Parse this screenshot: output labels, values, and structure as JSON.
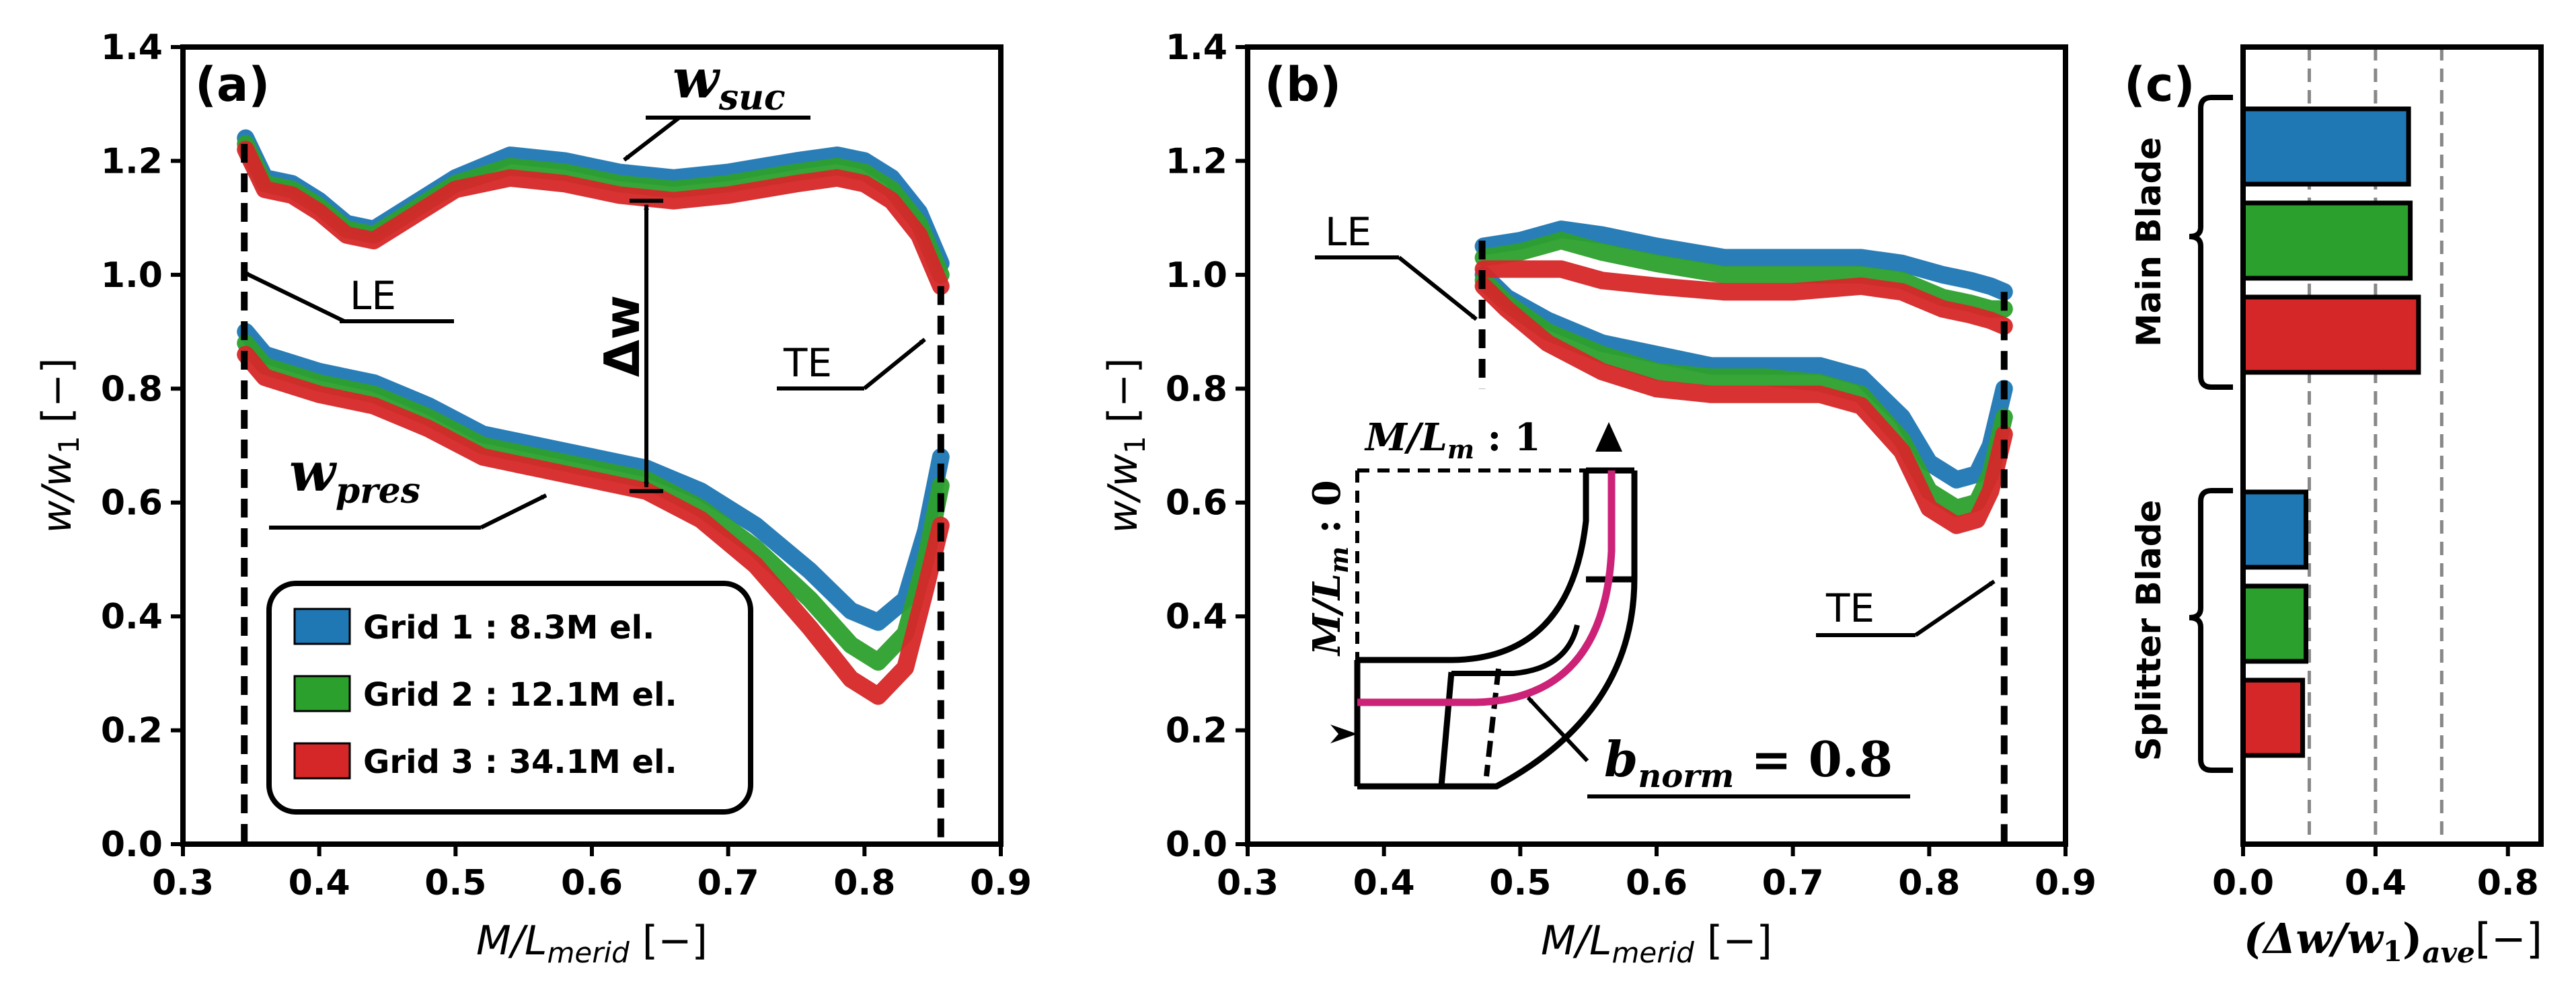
{
  "colors": {
    "grid1": "#1f77b4",
    "grid2": "#2ca02c",
    "grid3": "#d62728",
    "mid_curve": "#cc2277"
  },
  "chart_data": [
    {
      "panel": "(a)",
      "type": "line",
      "xlabel_main": "M/L",
      "xlabel_sub": "merid",
      "xlabel_unit": " [−]",
      "ylabel_main": "w/w",
      "ylabel_sub": "1",
      "ylabel_unit": " [−]",
      "xlim": [
        0.3,
        0.9
      ],
      "ylim": [
        0.0,
        1.4
      ],
      "xticks": [
        "0.3",
        "0.4",
        "0.5",
        "0.6",
        "0.7",
        "0.8",
        "0.9"
      ],
      "yticks": [
        "0.0",
        "0.2",
        "0.4",
        "0.6",
        "0.8",
        "1.0",
        "1.2",
        "1.4"
      ],
      "le_x": 0.345,
      "te_x": 0.856,
      "series": [
        {
          "name": "Grid 1 : 8.3M el.",
          "color": "#1f77b4",
          "suction": [
            [
              0.346,
              1.24
            ],
            [
              0.36,
              1.17
            ],
            [
              0.38,
              1.16
            ],
            [
              0.4,
              1.13
            ],
            [
              0.42,
              1.09
            ],
            [
              0.44,
              1.08
            ],
            [
              0.46,
              1.11
            ],
            [
              0.5,
              1.17
            ],
            [
              0.54,
              1.21
            ],
            [
              0.58,
              1.2
            ],
            [
              0.62,
              1.18
            ],
            [
              0.66,
              1.17
            ],
            [
              0.7,
              1.18
            ],
            [
              0.75,
              1.2
            ],
            [
              0.78,
              1.21
            ],
            [
              0.8,
              1.2
            ],
            [
              0.82,
              1.17
            ],
            [
              0.84,
              1.11
            ],
            [
              0.856,
              1.02
            ]
          ],
          "pressure": [
            [
              0.346,
              0.9
            ],
            [
              0.36,
              0.86
            ],
            [
              0.4,
              0.83
            ],
            [
              0.44,
              0.81
            ],
            [
              0.48,
              0.77
            ],
            [
              0.52,
              0.72
            ],
            [
              0.56,
              0.7
            ],
            [
              0.6,
              0.68
            ],
            [
              0.64,
              0.66
            ],
            [
              0.68,
              0.62
            ],
            [
              0.72,
              0.56
            ],
            [
              0.76,
              0.48
            ],
            [
              0.79,
              0.41
            ],
            [
              0.81,
              0.39
            ],
            [
              0.83,
              0.43
            ],
            [
              0.845,
              0.55
            ],
            [
              0.856,
              0.68
            ]
          ]
        },
        {
          "name": "Grid 2 : 12.1M el.",
          "color": "#2ca02c",
          "suction": [
            [
              0.346,
              1.23
            ],
            [
              0.36,
              1.16
            ],
            [
              0.38,
              1.15
            ],
            [
              0.4,
              1.12
            ],
            [
              0.42,
              1.08
            ],
            [
              0.44,
              1.07
            ],
            [
              0.46,
              1.1
            ],
            [
              0.5,
              1.16
            ],
            [
              0.54,
              1.19
            ],
            [
              0.58,
              1.18
            ],
            [
              0.62,
              1.16
            ],
            [
              0.66,
              1.15
            ],
            [
              0.7,
              1.16
            ],
            [
              0.75,
              1.18
            ],
            [
              0.78,
              1.19
            ],
            [
              0.8,
              1.18
            ],
            [
              0.82,
              1.15
            ],
            [
              0.84,
              1.09
            ],
            [
              0.856,
              1.0
            ]
          ],
          "pressure": [
            [
              0.346,
              0.88
            ],
            [
              0.36,
              0.84
            ],
            [
              0.4,
              0.81
            ],
            [
              0.44,
              0.79
            ],
            [
              0.48,
              0.75
            ],
            [
              0.52,
              0.7
            ],
            [
              0.56,
              0.68
            ],
            [
              0.6,
              0.66
            ],
            [
              0.64,
              0.64
            ],
            [
              0.68,
              0.59
            ],
            [
              0.72,
              0.52
            ],
            [
              0.76,
              0.43
            ],
            [
              0.79,
              0.35
            ],
            [
              0.81,
              0.32
            ],
            [
              0.83,
              0.37
            ],
            [
              0.845,
              0.5
            ],
            [
              0.856,
              0.63
            ]
          ]
        },
        {
          "name": "Grid 3 : 34.1M el.",
          "color": "#d62728",
          "suction": [
            [
              0.346,
              1.22
            ],
            [
              0.36,
              1.15
            ],
            [
              0.38,
              1.14
            ],
            [
              0.4,
              1.11
            ],
            [
              0.42,
              1.07
            ],
            [
              0.44,
              1.06
            ],
            [
              0.46,
              1.09
            ],
            [
              0.5,
              1.15
            ],
            [
              0.54,
              1.17
            ],
            [
              0.58,
              1.16
            ],
            [
              0.62,
              1.14
            ],
            [
              0.66,
              1.13
            ],
            [
              0.7,
              1.14
            ],
            [
              0.75,
              1.16
            ],
            [
              0.78,
              1.17
            ],
            [
              0.8,
              1.16
            ],
            [
              0.82,
              1.13
            ],
            [
              0.84,
              1.07
            ],
            [
              0.856,
              0.98
            ]
          ],
          "pressure": [
            [
              0.346,
              0.86
            ],
            [
              0.36,
              0.82
            ],
            [
              0.4,
              0.79
            ],
            [
              0.44,
              0.77
            ],
            [
              0.48,
              0.73
            ],
            [
              0.52,
              0.68
            ],
            [
              0.56,
              0.66
            ],
            [
              0.6,
              0.64
            ],
            [
              0.64,
              0.62
            ],
            [
              0.68,
              0.57
            ],
            [
              0.72,
              0.49
            ],
            [
              0.76,
              0.38
            ],
            [
              0.79,
              0.29
            ],
            [
              0.81,
              0.26
            ],
            [
              0.83,
              0.31
            ],
            [
              0.845,
              0.45
            ],
            [
              0.856,
              0.56
            ]
          ]
        }
      ],
      "annotations": {
        "w_suc_main": "w",
        "w_suc_sub": "suc",
        "w_pres_main": "w",
        "w_pres_sub": "pres",
        "dw_label": "Δw",
        "dw_x": 0.64,
        "dw_top": 1.13,
        "dw_bottom": 0.62,
        "le_label": "LE",
        "te_label": "TE"
      },
      "legend": {
        "position": "lower-left",
        "entries": [
          "Grid 1 : 8.3M el.",
          "Grid 2 : 12.1M el.",
          "Grid 3 : 34.1M el."
        ]
      }
    },
    {
      "panel": "(b)",
      "type": "line",
      "xlabel_main": "M/L",
      "xlabel_sub": "merid",
      "xlabel_unit": " [−]",
      "ylabel_main": "w/w",
      "ylabel_sub": "1",
      "ylabel_unit": " [−]",
      "xlim": [
        0.3,
        0.9
      ],
      "ylim": [
        0.0,
        1.4
      ],
      "xticks": [
        "0.3",
        "0.4",
        "0.5",
        "0.6",
        "0.7",
        "0.8",
        "0.9"
      ],
      "yticks": [
        "0.0",
        "0.2",
        "0.4",
        "0.6",
        "0.8",
        "1.0",
        "1.2",
        "1.4"
      ],
      "le_x": 0.472,
      "te_x": 0.855,
      "series": [
        {
          "name": "Grid 1",
          "color": "#1f77b4",
          "suction": [
            [
              0.473,
              1.05
            ],
            [
              0.5,
              1.06
            ],
            [
              0.53,
              1.08
            ],
            [
              0.56,
              1.07
            ],
            [
              0.6,
              1.05
            ],
            [
              0.65,
              1.03
            ],
            [
              0.7,
              1.03
            ],
            [
              0.75,
              1.03
            ],
            [
              0.78,
              1.02
            ],
            [
              0.81,
              1.0
            ],
            [
              0.83,
              0.99
            ],
            [
              0.845,
              0.98
            ],
            [
              0.855,
              0.97
            ]
          ],
          "pressure": [
            [
              0.473,
              1.0
            ],
            [
              0.49,
              0.96
            ],
            [
              0.52,
              0.92
            ],
            [
              0.56,
              0.88
            ],
            [
              0.6,
              0.86
            ],
            [
              0.64,
              0.84
            ],
            [
              0.68,
              0.84
            ],
            [
              0.72,
              0.84
            ],
            [
              0.75,
              0.82
            ],
            [
              0.78,
              0.75
            ],
            [
              0.8,
              0.67
            ],
            [
              0.82,
              0.64
            ],
            [
              0.835,
              0.65
            ],
            [
              0.845,
              0.7
            ],
            [
              0.855,
              0.8
            ]
          ]
        },
        {
          "name": "Grid 2",
          "color": "#2ca02c",
          "suction": [
            [
              0.473,
              1.03
            ],
            [
              0.5,
              1.04
            ],
            [
              0.53,
              1.06
            ],
            [
              0.56,
              1.04
            ],
            [
              0.6,
              1.02
            ],
            [
              0.65,
              1.0
            ],
            [
              0.7,
              1.0
            ],
            [
              0.75,
              1.0
            ],
            [
              0.78,
              0.99
            ],
            [
              0.81,
              0.96
            ],
            [
              0.83,
              0.95
            ],
            [
              0.845,
              0.94
            ],
            [
              0.855,
              0.94
            ]
          ],
          "pressure": [
            [
              0.473,
              0.99
            ],
            [
              0.49,
              0.95
            ],
            [
              0.52,
              0.9
            ],
            [
              0.56,
              0.86
            ],
            [
              0.6,
              0.83
            ],
            [
              0.64,
              0.82
            ],
            [
              0.68,
              0.82
            ],
            [
              0.72,
              0.81
            ],
            [
              0.75,
              0.79
            ],
            [
              0.78,
              0.71
            ],
            [
              0.8,
              0.62
            ],
            [
              0.82,
              0.59
            ],
            [
              0.835,
              0.6
            ],
            [
              0.845,
              0.65
            ],
            [
              0.855,
              0.75
            ]
          ]
        },
        {
          "name": "Grid 3",
          "color": "#d62728",
          "suction": [
            [
              0.473,
              1.01
            ],
            [
              0.5,
              1.01
            ],
            [
              0.53,
              1.01
            ],
            [
              0.56,
              0.99
            ],
            [
              0.6,
              0.98
            ],
            [
              0.65,
              0.97
            ],
            [
              0.7,
              0.97
            ],
            [
              0.75,
              0.98
            ],
            [
              0.78,
              0.97
            ],
            [
              0.81,
              0.94
            ],
            [
              0.83,
              0.93
            ],
            [
              0.845,
              0.92
            ],
            [
              0.855,
              0.91
            ]
          ],
          "pressure": [
            [
              0.473,
              0.98
            ],
            [
              0.49,
              0.94
            ],
            [
              0.52,
              0.88
            ],
            [
              0.56,
              0.83
            ],
            [
              0.6,
              0.8
            ],
            [
              0.64,
              0.79
            ],
            [
              0.68,
              0.79
            ],
            [
              0.72,
              0.79
            ],
            [
              0.75,
              0.77
            ],
            [
              0.78,
              0.69
            ],
            [
              0.8,
              0.59
            ],
            [
              0.82,
              0.56
            ],
            [
              0.835,
              0.57
            ],
            [
              0.845,
              0.62
            ],
            [
              0.855,
              0.72
            ]
          ]
        }
      ],
      "annotations": {
        "le_label": "LE",
        "te_label": "TE",
        "inset_top_main": "M/L",
        "inset_top_sub": "m",
        "inset_top_val": " : 1",
        "inset_left_main": "M/L",
        "inset_left_sub": "m",
        "inset_left_val": " : 0",
        "bnorm_main": "b",
        "bnorm_sub": "norm",
        "bnorm_val": " = 0.8"
      }
    },
    {
      "panel": "(c)",
      "type": "bar",
      "orientation": "horizontal",
      "xlabel_main": "(Δw/w",
      "xlabel_sub1": "1",
      "xlabel_close": ")",
      "xlabel_sub2": "ave",
      "xlabel_unit": "[−]",
      "xlim": [
        0.0,
        0.9
      ],
      "xticks": [
        "0.0",
        "0.4",
        "0.8"
      ],
      "gridlines_x": [
        0.2,
        0.4,
        0.6
      ],
      "groups": [
        {
          "name": "Main Blade",
          "values": [
            {
              "series": "Grid 1",
              "value": 0.5
            },
            {
              "series": "Grid 2",
              "value": 0.505
            },
            {
              "series": "Grid 3",
              "value": 0.53
            }
          ]
        },
        {
          "name": "Splitter Blade",
          "values": [
            {
              "series": "Grid 1",
              "value": 0.19
            },
            {
              "series": "Grid 2",
              "value": 0.19
            },
            {
              "series": "Grid 3",
              "value": 0.18
            }
          ]
        }
      ]
    }
  ]
}
